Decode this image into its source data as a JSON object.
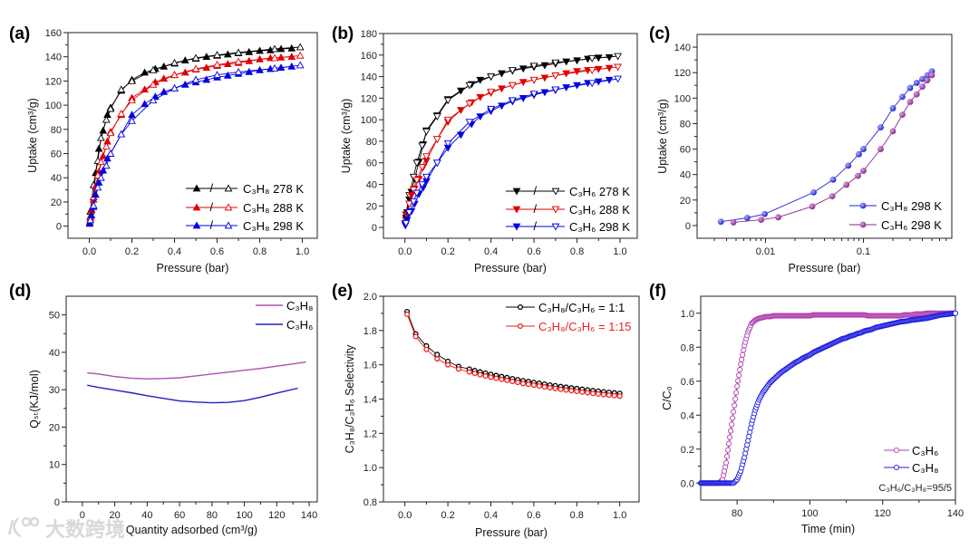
{
  "watermark": {
    "text": "大数跨境"
  },
  "legend_separator": "/",
  "chart_data": [
    {
      "panel": "(a)",
      "type": "scatter",
      "xlabel": "Pressure (bar)",
      "ylabel": "Uptake (cm³/g)",
      "xlim": [
        -0.1,
        1.07
      ],
      "ylim": [
        -10,
        160
      ],
      "xticks": [
        0,
        0.2,
        0.4,
        0.6,
        0.8,
        1.0
      ],
      "xtick_labels": [
        "0.0",
        "0.2",
        "0.4",
        "0.6",
        "0.8",
        "1.0"
      ],
      "yticks": [
        0,
        20,
        40,
        60,
        80,
        100,
        120,
        140,
        160
      ],
      "ytick_labels": [
        "0",
        "20",
        "40",
        "60",
        "80",
        "100",
        "120",
        "140",
        "160"
      ],
      "legend": "bottom-right",
      "marker": "triangle-up",
      "ads_x": [
        0.002,
        0.005,
        0.01,
        0.02,
        0.03,
        0.045,
        0.065,
        0.085,
        0.1,
        0.15,
        0.2,
        0.26,
        0.31,
        0.35,
        0.4,
        0.45,
        0.5,
        0.55,
        0.6,
        0.65,
        0.7,
        0.75,
        0.8,
        0.85,
        0.9,
        0.95
      ],
      "des_x": [
        0.99,
        0.87,
        0.7,
        0.6,
        0.5,
        0.4,
        0.3,
        0.2,
        0.15,
        0.1,
        0.08,
        0.055,
        0.04,
        0.02,
        0.005
      ],
      "series": [
        {
          "name": "C₃H₈ 278 K",
          "color": "#000000",
          "ads": [
            3,
            8,
            14,
            24,
            44,
            64,
            79,
            92,
            98,
            112,
            121,
            127,
            130,
            132,
            134.5,
            137,
            138.5,
            140,
            141,
            142,
            143,
            144,
            145,
            145.5,
            146.5,
            147
          ],
          "des": [
            148,
            146.5,
            143.5,
            141.5,
            139,
            135,
            129,
            120,
            113,
            97,
            88,
            73,
            54,
            34,
            12
          ]
        },
        {
          "name": "C₃H₈ 288 K",
          "color": "#e00000",
          "ads": [
            3,
            7,
            13,
            22,
            33,
            45,
            58,
            70,
            78,
            92,
            106,
            113,
            119,
            122,
            125,
            127,
            129.5,
            131,
            132.5,
            134,
            135,
            136.5,
            138,
            139,
            139.5,
            140
          ],
          "des": [
            141,
            139,
            136,
            133.5,
            130,
            125,
            117,
            104,
            93,
            77,
            66,
            53,
            42,
            24,
            8
          ]
        },
        {
          "name": "C₃H₈ 298 K",
          "color": "#0000e0",
          "ads": [
            2,
            5,
            9,
            16,
            26,
            36,
            46,
            56,
            60,
            76,
            92,
            101,
            107,
            111,
            114,
            117,
            119,
            121,
            123,
            124.5,
            126,
            127.5,
            129,
            130,
            131,
            132
          ],
          "des": [
            133,
            130.5,
            127.5,
            125,
            121,
            114,
            104,
            87,
            76,
            60,
            50,
            40,
            32,
            17,
            5
          ]
        }
      ]
    },
    {
      "panel": "(b)",
      "type": "scatter",
      "xlabel": "Pressure (bar)",
      "ylabel": "Uptake (cm³/g)",
      "xlim": [
        -0.1,
        1.08
      ],
      "ylim": [
        -10,
        180
      ],
      "xticks": [
        0,
        0.2,
        0.4,
        0.6,
        0.8,
        1.0
      ],
      "xtick_labels": [
        "0.0",
        "0.2",
        "0.4",
        "0.6",
        "0.8",
        "1.0"
      ],
      "yticks": [
        0,
        20,
        40,
        60,
        80,
        100,
        120,
        140,
        160,
        180
      ],
      "ytick_labels": [
        "0",
        "20",
        "40",
        "60",
        "80",
        "100",
        "120",
        "140",
        "160",
        "180"
      ],
      "legend": "bottom-right",
      "marker": "triangle-down",
      "ads_x": [
        0.002,
        0.005,
        0.01,
        0.02,
        0.03,
        0.045,
        0.065,
        0.085,
        0.1,
        0.15,
        0.2,
        0.26,
        0.31,
        0.35,
        0.4,
        0.45,
        0.5,
        0.55,
        0.6,
        0.65,
        0.7,
        0.75,
        0.8,
        0.85,
        0.9,
        0.95
      ],
      "des_x": [
        0.99,
        0.87,
        0.7,
        0.6,
        0.5,
        0.4,
        0.3,
        0.2,
        0.15,
        0.1,
        0.08,
        0.055,
        0.04,
        0.02,
        0.005
      ],
      "series": [
        {
          "name": "C₃H₆ 278 K",
          "color": "#000000",
          "ads": [
            4,
            9,
            14,
            26,
            33,
            45,
            61,
            77,
            90,
            104,
            119,
            127,
            133,
            137,
            140,
            143,
            145.5,
            147.5,
            149,
            150.5,
            152,
            154,
            155,
            156.5,
            157.5,
            158
          ],
          "des": [
            159,
            157,
            153,
            150,
            146,
            140,
            132,
            118,
            103,
            89,
            76,
            60,
            47,
            30,
            12
          ]
        },
        {
          "name": "C₃H₆ 288 K",
          "color": "#e00000",
          "ads": [
            3,
            7,
            12,
            22,
            30,
            36,
            45,
            56,
            62,
            82,
            98,
            109,
            116,
            121,
            125,
            129,
            132,
            135,
            137,
            139,
            141,
            143,
            145,
            146,
            147,
            148
          ],
          "des": [
            149,
            146,
            141,
            137,
            132,
            126,
            115,
            100,
            82,
            66,
            56,
            44,
            35,
            22,
            7
          ]
        },
        {
          "name": "C₃H₆ 298 K",
          "color": "#0000e0",
          "ads": [
            2,
            4,
            7,
            13,
            15,
            22,
            31,
            37,
            43,
            60,
            74,
            86,
            96,
            103,
            108,
            113,
            117,
            120,
            123,
            125.5,
            127.5,
            130,
            132,
            134,
            135.5,
            137
          ],
          "des": [
            138,
            134,
            128,
            124,
            118,
            110,
            98,
            78,
            60,
            47,
            40,
            32,
            24,
            14,
            4
          ]
        }
      ]
    },
    {
      "panel": "(c)",
      "type": "line",
      "xscale": "log",
      "xlabel": "Pressure (bar)",
      "ylabel": "Uptake (cm³/g)",
      "xlim": [
        0.002,
        0.8
      ],
      "ylim": [
        -10,
        150
      ],
      "xticks": [
        0.01,
        0.1
      ],
      "xtick_labels": [
        "0.01",
        "0.1"
      ],
      "yticks": [
        0,
        20,
        40,
        60,
        80,
        100,
        120,
        140
      ],
      "ytick_labels": [
        "0",
        "20",
        "40",
        "60",
        "80",
        "100",
        "120",
        "140"
      ],
      "legend": "bottom-right",
      "marker": "sphere",
      "series": [
        {
          "name": "C₃H₈ 298 K",
          "color": "#2626cc",
          "x": [
            0.0035,
            0.0065,
            0.0098,
            0.031,
            0.049,
            0.07,
            0.09,
            0.1,
            0.15,
            0.2,
            0.25,
            0.3,
            0.35,
            0.4,
            0.45,
            0.5
          ],
          "y": [
            3,
            6,
            9,
            26,
            36,
            47,
            56,
            60,
            77,
            92,
            101,
            108,
            112,
            115,
            118,
            121
          ]
        },
        {
          "name": "C₃H₆ 298 K",
          "color": "#8a2a8a",
          "x": [
            0.0047,
            0.009,
            0.0135,
            0.03,
            0.048,
            0.067,
            0.088,
            0.1,
            0.15,
            0.2,
            0.25,
            0.3,
            0.35,
            0.4,
            0.45,
            0.5
          ],
          "y": [
            2.5,
            4.5,
            6.5,
            15,
            23,
            32,
            39,
            43,
            60,
            74,
            87,
            97,
            103,
            109,
            114,
            118
          ]
        }
      ]
    },
    {
      "panel": "(d)",
      "type": "line",
      "xlabel": "Quantity adsorbed (cm³/g)",
      "ylabel": "Qₛₜ(KJ/mol)",
      "xlim": [
        -10,
        145
      ],
      "ylim": [
        0,
        55
      ],
      "xticks": [
        0,
        20,
        40,
        60,
        80,
        100,
        120,
        140
      ],
      "xtick_labels": [
        "0",
        "20",
        "40",
        "60",
        "80",
        "100",
        "120",
        "140"
      ],
      "yticks": [
        0,
        10,
        20,
        30,
        40,
        50
      ],
      "ytick_labels": [
        "0",
        "10",
        "20",
        "30",
        "40",
        "50"
      ],
      "legend": "top-right",
      "marker": "none",
      "series": [
        {
          "name": "C₃H₈",
          "color": "#b050b0",
          "x": [
            3,
            10,
            20,
            30,
            40,
            50,
            60,
            70,
            80,
            90,
            100,
            110,
            120,
            130,
            138
          ],
          "y": [
            34.5,
            34.2,
            33.5,
            33.1,
            32.9,
            33.0,
            33.2,
            33.7,
            34.2,
            34.7,
            35.2,
            35.7,
            36.3,
            36.9,
            37.4
          ]
        },
        {
          "name": "C₃H₆",
          "color": "#2020c0",
          "x": [
            3,
            10,
            20,
            30,
            40,
            50,
            60,
            70,
            80,
            90,
            100,
            110,
            120,
            133
          ],
          "y": [
            31.2,
            30.6,
            29.9,
            29.2,
            28.4,
            27.7,
            27.0,
            26.7,
            26.5,
            26.6,
            27.1,
            28.0,
            29.1,
            30.4
          ]
        }
      ]
    },
    {
      "panel": "(e)",
      "type": "line",
      "xlabel": "Pressure (bar)",
      "ylabel": "C₃H₈/C₃H₆ Selectivity",
      "xlim": [
        -0.1,
        1.09
      ],
      "ylim": [
        0.8,
        2.0
      ],
      "xticks": [
        0,
        0.2,
        0.4,
        0.6,
        0.8,
        1.0
      ],
      "xtick_labels": [
        "0.0",
        "0.2",
        "0.4",
        "0.6",
        "0.8",
        "1.0"
      ],
      "yticks": [
        0.8,
        1.0,
        1.2,
        1.4,
        1.6,
        1.8,
        2.0
      ],
      "ytick_labels": [
        "0.8",
        "1.0",
        "1.2",
        "1.4",
        "1.6",
        "1.8",
        "2.0"
      ],
      "legend": "top-right",
      "marker": "circle",
      "x": [
        0.01,
        0.05,
        0.1,
        0.15,
        0.2,
        0.25,
        0.3,
        0.325,
        0.35,
        0.375,
        0.4,
        0.425,
        0.45,
        0.475,
        0.5,
        0.525,
        0.55,
        0.575,
        0.6,
        0.625,
        0.65,
        0.675,
        0.7,
        0.725,
        0.75,
        0.775,
        0.8,
        0.825,
        0.85,
        0.875,
        0.9,
        0.925,
        0.95,
        0.975,
        1.0
      ],
      "series": [
        {
          "name": "C₃H₈/C₃H₆ = 1:1",
          "color": "#000000",
          "y": [
            1.91,
            1.78,
            1.71,
            1.66,
            1.62,
            1.59,
            1.575,
            1.566,
            1.558,
            1.551,
            1.544,
            1.537,
            1.531,
            1.525,
            1.519,
            1.513,
            1.507,
            1.502,
            1.497,
            1.492,
            1.487,
            1.482,
            1.478,
            1.473,
            1.469,
            1.465,
            1.461,
            1.457,
            1.453,
            1.449,
            1.446,
            1.442,
            1.439,
            1.436,
            1.433
          ]
        },
        {
          "name": "C₃H₈/C₃H₆ = 1:15",
          "color": "#e8201e",
          "y": [
            1.895,
            1.765,
            1.69,
            1.635,
            1.6,
            1.575,
            1.558,
            1.55,
            1.542,
            1.535,
            1.528,
            1.521,
            1.515,
            1.509,
            1.503,
            1.497,
            1.491,
            1.486,
            1.481,
            1.476,
            1.471,
            1.466,
            1.462,
            1.457,
            1.453,
            1.449,
            1.445,
            1.441,
            1.437,
            1.433,
            1.43,
            1.426,
            1.423,
            1.42,
            1.417
          ]
        }
      ]
    },
    {
      "panel": "(f)",
      "type": "scatter",
      "xlabel": "Time (min)",
      "ylabel": "C/C₀",
      "xlim": [
        70,
        140
      ],
      "ylim": [
        -0.1,
        1.1
      ],
      "xticks": [
        80,
        100,
        120,
        140
      ],
      "xtick_labels": [
        "80",
        "100",
        "120",
        "140"
      ],
      "yticks": [
        0,
        0.2,
        0.4,
        0.6,
        0.8,
        1.0
      ],
      "ytick_labels": [
        "0.0",
        "0.2",
        "0.4",
        "0.6",
        "0.8",
        "1.0"
      ],
      "legend": "bottom-right",
      "marker": "circle-open",
      "annotation": "C₃H₆/C₃H₈=95/5",
      "x_start": 70,
      "x_step": 1,
      "series": [
        {
          "name": "C₃H₆",
          "color": "#b040b0",
          "y": [
            0,
            0,
            0,
            0,
            0,
            0,
            0.02,
            0.12,
            0.27,
            0.42,
            0.57,
            0.7,
            0.81,
            0.89,
            0.94,
            0.96,
            0.97,
            0.975,
            0.98,
            0.98,
            0.985,
            0.985,
            0.985,
            0.985,
            0.985,
            0.985,
            0.985,
            0.985,
            0.985,
            0.985,
            0.985,
            0.99,
            0.99,
            0.99,
            0.99,
            0.99,
            0.99,
            0.99,
            0.99,
            0.99,
            0.99,
            0.99,
            0.99,
            0.99,
            0.99,
            0.99,
            0.985,
            0.985,
            0.985,
            0.985,
            0.985,
            0.985,
            0.985,
            0.985,
            0.985,
            0.985,
            0.99,
            0.99,
            0.99,
            0.995,
            0.995,
            0.995,
            1.0,
            1.0,
            1.0,
            1.0,
            1.0,
            1.0,
            1.0,
            1.0,
            1.0
          ]
        },
        {
          "name": "C₃H₈",
          "color": "#1e1ee0",
          "y": [
            0,
            0,
            0,
            0,
            0,
            0,
            0,
            0,
            0,
            0,
            0.02,
            0.07,
            0.15,
            0.25,
            0.35,
            0.43,
            0.49,
            0.53,
            0.56,
            0.59,
            0.61,
            0.63,
            0.65,
            0.665,
            0.68,
            0.695,
            0.71,
            0.72,
            0.735,
            0.745,
            0.755,
            0.77,
            0.78,
            0.79,
            0.8,
            0.81,
            0.82,
            0.83,
            0.84,
            0.85,
            0.855,
            0.865,
            0.87,
            0.88,
            0.885,
            0.895,
            0.9,
            0.905,
            0.915,
            0.92,
            0.925,
            0.93,
            0.935,
            0.94,
            0.945,
            0.95,
            0.952,
            0.955,
            0.96,
            0.962,
            0.965,
            0.968,
            0.97,
            0.975,
            0.98,
            0.985,
            0.99,
            0.992,
            0.995,
            0.998,
            1.0
          ]
        }
      ]
    }
  ]
}
